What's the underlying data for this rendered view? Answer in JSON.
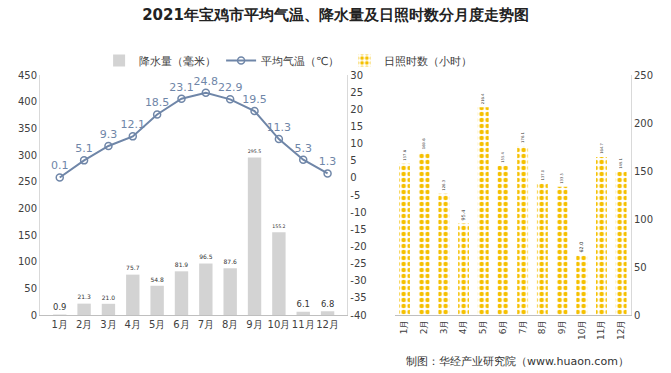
{
  "chart_data": [
    {
      "type": "bar",
      "title": "2021年宝鸡市平均气温、降水量及日照时数分月度走势图",
      "categories": [
        "1月",
        "2月",
        "3月",
        "4月",
        "5月",
        "6月",
        "7月",
        "8月",
        "9月",
        "10月",
        "11月",
        "12月"
      ],
      "series": [
        {
          "name": "降水量（毫米）",
          "type": "bar",
          "color": "#d3d3d3",
          "values": [
            0.9,
            21.3,
            21.0,
            75.7,
            54.8,
            81.9,
            96.5,
            87.6,
            295.5,
            155.2,
            6.1,
            6.8
          ],
          "value_labels": [
            "0.9",
            "21.3",
            "21.0",
            "75.7",
            "54.8",
            "81.9",
            "96.5",
            "87.6",
            "295.5",
            "155.2",
            "6.1",
            "6.8"
          ]
        },
        {
          "name": "平均气温（℃）",
          "type": "line",
          "axis": "y2",
          "color": "#6f86a8",
          "marker": "circle",
          "values": [
            0.1,
            5.1,
            9.3,
            12.1,
            18.5,
            23.1,
            24.8,
            22.9,
            19.5,
            11.3,
            5.3,
            1.3
          ],
          "value_labels": [
            "0.1",
            "5.1",
            "9.3",
            "12.1",
            "18.5",
            "23.1",
            "24.8",
            "22.9",
            "19.5",
            "11.3",
            "5.3",
            "1.3"
          ]
        }
      ],
      "ylim": [
        0,
        450
      ],
      "yticks": [
        0,
        50,
        100,
        150,
        200,
        250,
        300,
        350,
        400,
        450
      ],
      "y2lim": [
        -40,
        30
      ],
      "y2ticks": [
        -40,
        -35,
        -30,
        -25,
        -20,
        -15,
        -10,
        -5,
        0,
        5,
        10,
        15,
        20,
        25,
        30
      ],
      "data_labels": true,
      "grid": false,
      "legend": "top",
      "annotations": [
        "制图：华经产业研究院（www.huaon.com）"
      ]
    },
    {
      "type": "bar",
      "categories": [
        "1月",
        "2月",
        "3月",
        "4月",
        "5月",
        "6月",
        "7月",
        "8月",
        "9月",
        "10月",
        "11月",
        "12月"
      ],
      "series": [
        {
          "name": "日照时数（小时）",
          "type": "bar",
          "color": "#f5c000",
          "marker": "dots",
          "values": [
            157.6,
            169.6,
            126.3,
            95.4,
            216.4,
            155.4,
            176.1,
            137.0,
            133.5,
            62.0,
            164.7,
            149.1
          ],
          "value_labels": [
            "157.6",
            "169.6",
            "126.3",
            "95.4",
            "216.4",
            "155.4",
            "176.1",
            "137.0",
            "133.5",
            "62.0",
            "164.7",
            "149.1"
          ]
        }
      ],
      "ylim": [
        0,
        250
      ],
      "yticks": [
        0,
        50,
        100,
        150,
        200,
        250
      ],
      "data_labels": true,
      "grid": false
    }
  ]
}
